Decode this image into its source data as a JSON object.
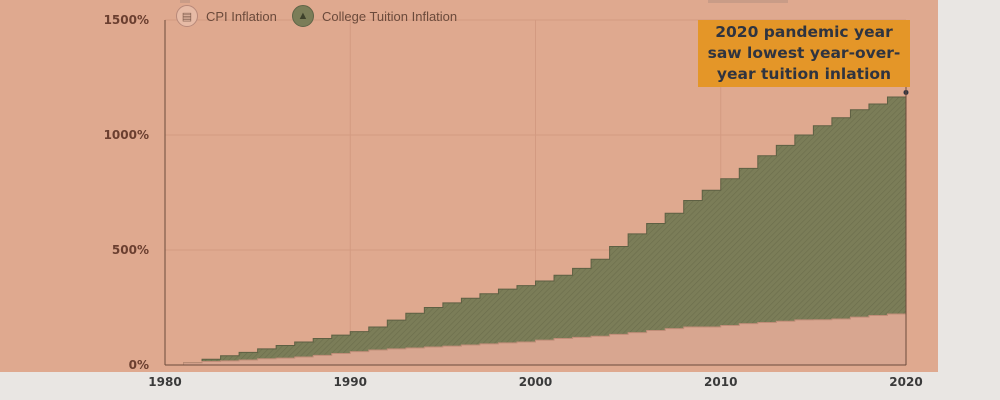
{
  "legend": {
    "cpi_label": "CPI Inflation",
    "tuition_label": "College Tuition Inflation",
    "cpi_icon": "chart-icon",
    "tuition_icon": "graduation-cap-icon"
  },
  "annotation": {
    "text": "2020 pandemic year saw lowest year-over-year tuition inlation"
  },
  "colors": {
    "background": "#dfa98f",
    "tuition": "#7b7d58",
    "cpi": "#d8a690",
    "annotation_bg": "#e49628"
  },
  "chart_data": {
    "type": "area",
    "step": true,
    "x_ticks": [
      "1980",
      "1990",
      "2000",
      "2010",
      "2020"
    ],
    "y_ticks": [
      "0%",
      "500%",
      "1000%",
      "1500%"
    ],
    "xlim": [
      1980,
      2020
    ],
    "ylim": [
      0,
      1500
    ],
    "grid": true,
    "legend_position": "top-left",
    "x": [
      1980,
      1981,
      1982,
      1983,
      1984,
      1985,
      1986,
      1987,
      1988,
      1989,
      1990,
      1991,
      1992,
      1993,
      1994,
      1995,
      1996,
      1997,
      1998,
      1999,
      2000,
      2001,
      2002,
      2003,
      2004,
      2005,
      2006,
      2007,
      2008,
      2009,
      2010,
      2011,
      2012,
      2013,
      2014,
      2015,
      2016,
      2017,
      2018,
      2019,
      2020
    ],
    "series": [
      {
        "name": "College Tuition Inflation",
        "values": [
          0,
          10,
          25,
          40,
          55,
          70,
          85,
          100,
          115,
          130,
          145,
          165,
          195,
          225,
          250,
          270,
          290,
          310,
          330,
          345,
          365,
          390,
          420,
          460,
          515,
          570,
          615,
          660,
          715,
          760,
          810,
          855,
          910,
          955,
          1000,
          1040,
          1075,
          1110,
          1135,
          1165,
          1185
        ]
      },
      {
        "name": "CPI Inflation",
        "values": [
          0,
          10,
          15,
          18,
          22,
          27,
          30,
          35,
          42,
          50,
          58,
          65,
          70,
          74,
          78,
          82,
          87,
          92,
          96,
          100,
          108,
          115,
          120,
          125,
          133,
          141,
          150,
          158,
          165,
          165,
          172,
          180,
          185,
          190,
          196,
          197,
          200,
          208,
          215,
          222,
          228
        ]
      }
    ]
  }
}
